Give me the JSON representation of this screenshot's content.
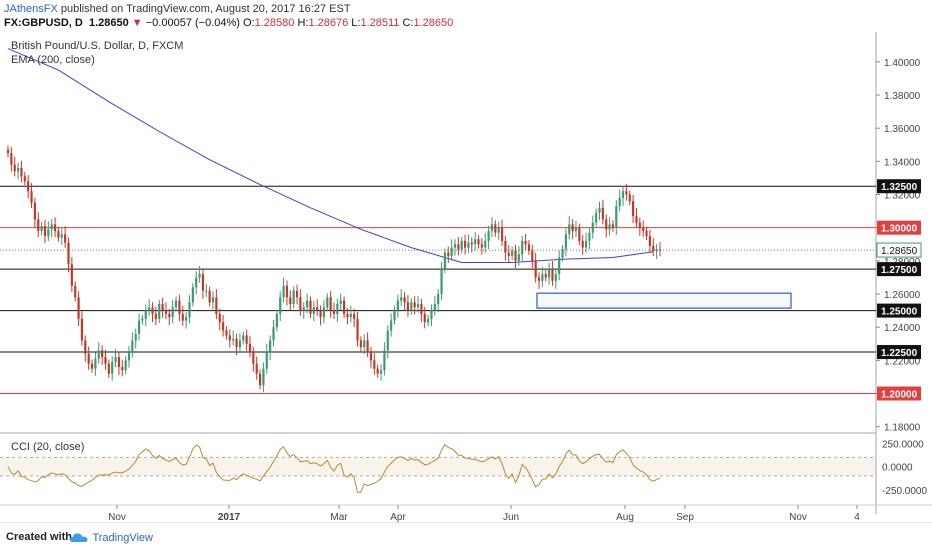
{
  "header": {
    "user": "JAthensFX",
    "published_text": " published on TradingView.com, August 20, 2017 16:27 EST",
    "symbol": "FX:GBPUSD, D",
    "last": "1.28650",
    "change_arrow": "▼",
    "change": "−0.00057 (−0.04%)",
    "open_label": "O:",
    "open": "1.28580",
    "high_label": "H:",
    "high": "1.28676",
    "low_label": "L:",
    "low": "1.28511",
    "close_label": "C:",
    "close": "1.28650"
  },
  "footer": {
    "created_with": "Created with",
    "brand": "TradingView"
  },
  "colors": {
    "up": "#3d9970",
    "down": "#c0392b",
    "ema": "#3f3fd6",
    "cci": "#b8892e",
    "red_level": "#e04040",
    "black_level": "#111111",
    "box": "#2a5ad5"
  },
  "chart_data": {
    "type": "candlestick",
    "title": "British Pound/U.S. Dollar, D, FXCM",
    "indicator": "EMA (200, close)",
    "ylim": [
      1.178,
      1.418
    ],
    "price_ticks": [
      "1.40000",
      "1.38000",
      "1.36000",
      "1.34000",
      "1.32000",
      "1.30000",
      "1.28000",
      "1.26000",
      "1.24000",
      "1.22000",
      "1.20000",
      "1.18000"
    ],
    "time_labels": [
      "Nov",
      "2017",
      "Mar",
      "Apr",
      "Jun",
      "Aug",
      "Sep",
      "Nov",
      "4"
    ],
    "levels": [
      {
        "value": 1.325,
        "label": "1.32500",
        "color": "black"
      },
      {
        "value": 1.3,
        "label": "1.30000",
        "color": "red"
      },
      {
        "value": 1.275,
        "label": "1.27500",
        "color": "black"
      },
      {
        "value": 1.25,
        "label": "1.25000",
        "color": "black"
      },
      {
        "value": 1.225,
        "label": "1.22500",
        "color": "black"
      },
      {
        "value": 1.2,
        "label": "1.20000",
        "color": "red"
      }
    ],
    "current_price": {
      "value": 1.2865,
      "label": "1.28650"
    },
    "zone": {
      "low": 1.2515,
      "high": 1.2605
    },
    "closes": [
      1.345,
      1.338,
      1.334,
      1.336,
      1.331,
      1.328,
      1.322,
      1.315,
      1.305,
      1.298,
      1.301,
      1.295,
      1.299,
      1.302,
      1.298,
      1.294,
      1.296,
      1.291,
      1.278,
      1.265,
      1.258,
      1.245,
      1.232,
      1.224,
      1.218,
      1.215,
      1.221,
      1.226,
      1.222,
      1.218,
      1.212,
      1.219,
      1.222,
      1.216,
      1.214,
      1.22,
      1.225,
      1.232,
      1.236,
      1.244,
      1.245,
      1.25,
      1.252,
      1.248,
      1.245,
      1.254,
      1.25,
      1.248,
      1.246,
      1.252,
      1.256,
      1.248,
      1.244,
      1.246,
      1.255,
      1.264,
      1.27,
      1.272,
      1.262,
      1.262,
      1.255,
      1.258,
      1.248,
      1.243,
      1.238,
      1.235,
      1.232,
      1.233,
      1.228,
      1.232,
      1.235,
      1.23,
      1.225,
      1.218,
      1.212,
      1.205,
      1.215,
      1.225,
      1.232,
      1.24,
      1.248,
      1.258,
      1.265,
      1.258,
      1.254,
      1.262,
      1.258,
      1.25,
      1.252,
      1.256,
      1.248,
      1.252,
      1.25,
      1.246,
      1.252,
      1.258,
      1.25,
      1.248,
      1.254,
      1.256,
      1.248,
      1.246,
      1.248,
      1.245,
      1.232,
      1.228,
      1.232,
      1.225,
      1.22,
      1.215,
      1.212,
      1.214,
      1.226,
      1.238,
      1.244,
      1.25,
      1.256,
      1.258,
      1.255,
      1.25,
      1.255,
      1.252,
      1.254,
      1.248,
      1.243,
      1.245,
      1.25,
      1.254,
      1.26,
      1.275,
      1.285,
      1.283,
      1.288,
      1.29,
      1.287,
      1.292,
      1.288,
      1.291,
      1.29,
      1.293,
      1.29,
      1.288,
      1.292,
      1.298,
      1.302,
      1.297,
      1.3,
      1.292,
      1.285,
      1.283,
      1.286,
      1.28,
      1.284,
      1.292,
      1.29,
      1.286,
      1.28,
      1.27,
      1.268,
      1.272,
      1.27,
      1.275,
      1.268,
      1.272,
      1.282,
      1.287,
      1.296,
      1.302,
      1.298,
      1.3,
      1.292,
      1.288,
      1.292,
      1.297,
      1.303,
      1.309,
      1.312,
      1.305,
      1.299,
      1.302,
      1.3,
      1.313,
      1.318,
      1.322,
      1.32,
      1.316,
      1.307,
      1.303,
      1.3,
      1.298,
      1.295,
      1.289,
      1.286,
      1.287,
      1.2865
    ],
    "ema": [
      {
        "i": 0,
        "v": 1.408
      },
      {
        "i": 15,
        "v": 1.395
      },
      {
        "i": 30,
        "v": 1.376
      },
      {
        "i": 45,
        "v": 1.358
      },
      {
        "i": 60,
        "v": 1.341
      },
      {
        "i": 75,
        "v": 1.326
      },
      {
        "i": 90,
        "v": 1.312
      },
      {
        "i": 105,
        "v": 1.299
      },
      {
        "i": 120,
        "v": 1.288
      },
      {
        "i": 135,
        "v": 1.279
      },
      {
        "i": 150,
        "v": 1.279
      },
      {
        "i": 165,
        "v": 1.281
      },
      {
        "i": 180,
        "v": 1.282
      },
      {
        "i": 192,
        "v": 1.2855
      }
    ],
    "cci": {
      "title": "CCI (20, close)",
      "ticks": [
        "250.0000",
        "0.0000",
        "-250.0000"
      ],
      "ylim": [
        -400,
        350
      ],
      "band": [
        -100,
        100
      ]
    }
  }
}
